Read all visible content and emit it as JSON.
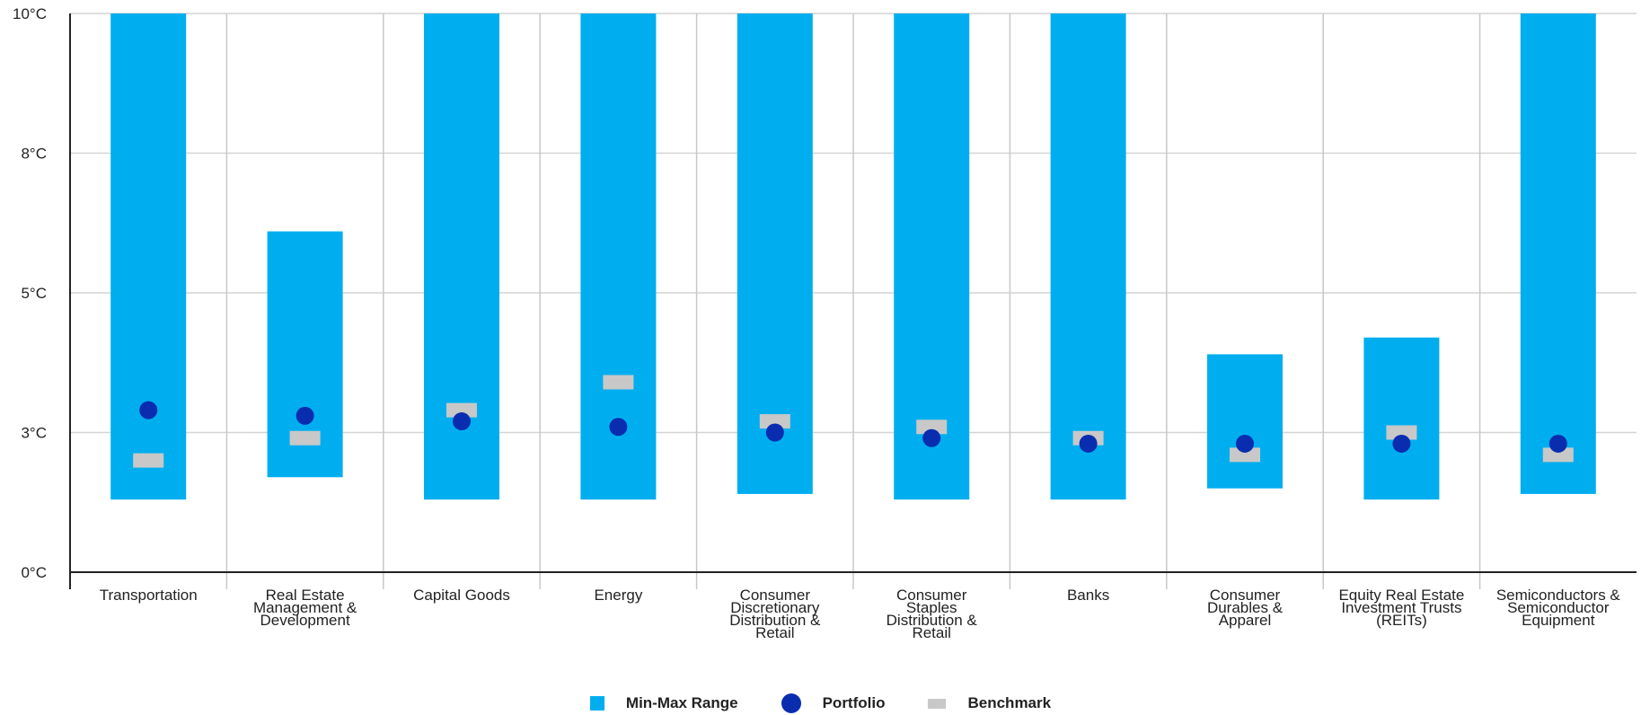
{
  "chart_data": {
    "type": "range-bar",
    "yticks": [
      "0°C",
      "3°C",
      "5°C",
      "8°C",
      "10°C"
    ],
    "ylim": [
      0,
      10
    ],
    "categories": [
      [
        "Transportation"
      ],
      [
        "Real Estate",
        "Management &",
        "Development"
      ],
      [
        "Capital Goods"
      ],
      [
        "Energy"
      ],
      [
        "Consumer",
        "Discretionary",
        "Distribution &",
        "Retail"
      ],
      [
        "Consumer",
        "Staples",
        "Distribution &",
        "Retail"
      ],
      [
        "Banks"
      ],
      [
        "Consumer",
        "Durables &",
        "Apparel"
      ],
      [
        "Equity Real Estate",
        "Investment Trusts",
        "(REITs)"
      ],
      [
        "Semiconductors &",
        "Semiconductor",
        "Equipment"
      ]
    ],
    "series": [
      {
        "name": "Min-Max Range",
        "color": "#00aeef",
        "min": [
          1.3,
          1.7,
          1.3,
          1.3,
          1.4,
          1.3,
          1.3,
          1.5,
          1.3,
          1.4
        ],
        "max": [
          10,
          6.1,
          10,
          10,
          10,
          10,
          10,
          3.9,
          4.2,
          10
        ]
      },
      {
        "name": "Portfolio",
        "color": "#0a2db0",
        "values": [
          2.9,
          2.8,
          2.7,
          2.6,
          2.5,
          2.4,
          2.3,
          2.3,
          2.3,
          2.3
        ]
      },
      {
        "name": "Benchmark",
        "color": "#c8c8c8",
        "values": [
          2.0,
          2.4,
          2.9,
          3.4,
          2.7,
          2.6,
          2.4,
          2.1,
          2.5,
          2.1
        ]
      }
    ],
    "grid": true,
    "legend_position": "bottom-center"
  }
}
